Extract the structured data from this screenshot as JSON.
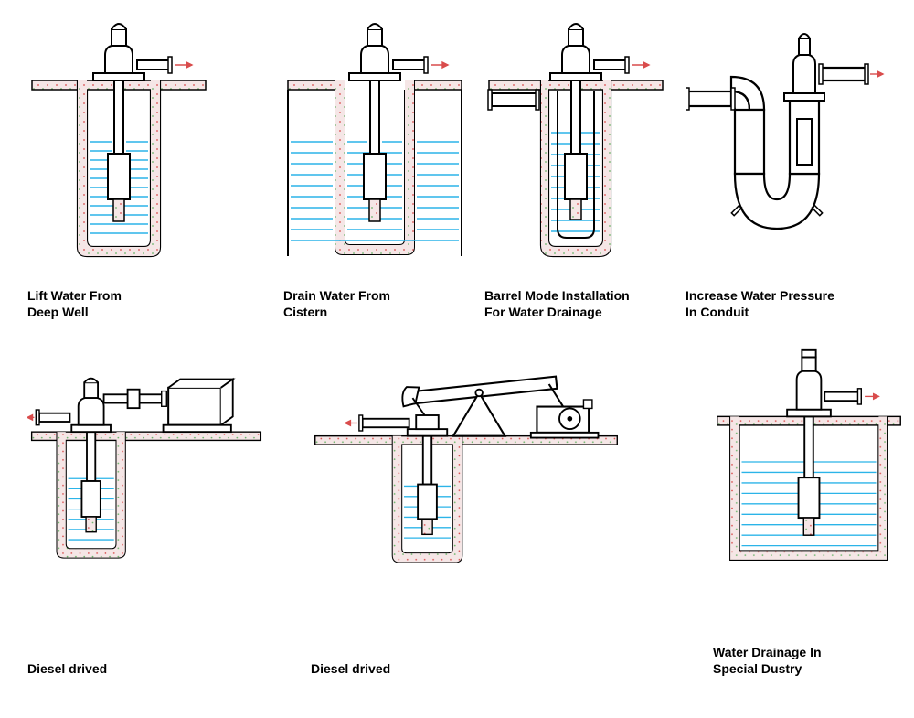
{
  "diagrams": [
    {
      "id": 0,
      "label": "Lift Water From\nDeep Well"
    },
    {
      "id": 1,
      "label": "Drain Water From\nCistern"
    },
    {
      "id": 2,
      "label": "Barrel Mode Installation\nFor Water Drainage"
    },
    {
      "id": 3,
      "label": "Increase Water Pressure\nIn Conduit"
    },
    {
      "id": 4,
      "label": "Diesel drived"
    },
    {
      "id": 5,
      "label": "Diesel drived"
    },
    {
      "id": 6,
      "label": "Water Drainage In\nSpecial Dustry"
    }
  ],
  "colors": {
    "stroke": "#000000",
    "water": "#2bb4e8",
    "ground_fill": "#f5e6e6",
    "dot_red": "#d94c4c",
    "dot_green": "#6bb56b",
    "arrow": "#d94c4c",
    "faint": "#f0e8e8"
  },
  "style": {
    "stroke_width": 2.2,
    "water_line_width": 1.4,
    "label_font_size": 14,
    "label_font_weight": "bold"
  }
}
